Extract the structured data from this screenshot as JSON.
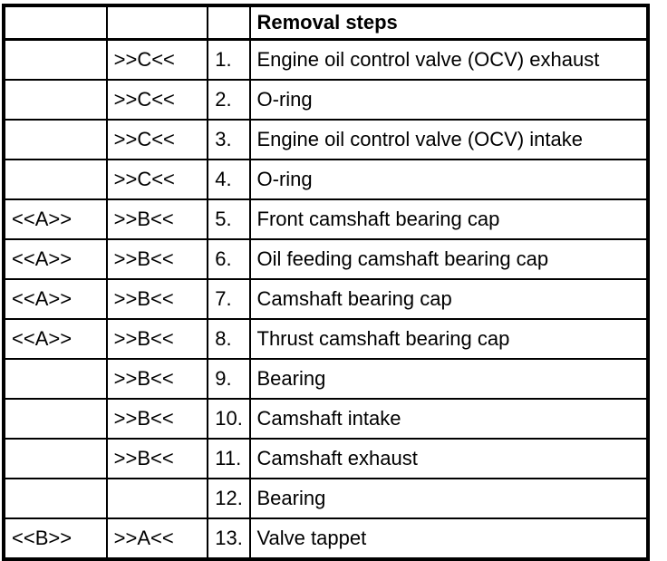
{
  "header": {
    "removal_steps": "Removal steps"
  },
  "rows": [
    {
      "a": "",
      "b": ">>C<<",
      "n": "1.",
      "step": "Engine oil control valve (OCV) exhaust"
    },
    {
      "a": "",
      "b": ">>C<<",
      "n": "2.",
      "step": "O-ring"
    },
    {
      "a": "",
      "b": ">>C<<",
      "n": "3.",
      "step": "Engine oil control valve (OCV) intake"
    },
    {
      "a": "",
      "b": ">>C<<",
      "n": "4.",
      "step": "O-ring"
    },
    {
      "a": "<<A>>",
      "b": ">>B<<",
      "n": "5.",
      "step": "Front camshaft bearing cap"
    },
    {
      "a": "<<A>>",
      "b": ">>B<<",
      "n": "6.",
      "step": "Oil feeding camshaft bearing cap"
    },
    {
      "a": "<<A>>",
      "b": ">>B<<",
      "n": "7.",
      "step": "Camshaft bearing cap"
    },
    {
      "a": "<<A>>",
      "b": ">>B<<",
      "n": "8.",
      "step": "Thrust camshaft bearing cap"
    },
    {
      "a": "",
      "b": ">>B<<",
      "n": "9.",
      "step": "Bearing"
    },
    {
      "a": "",
      "b": ">>B<<",
      "n": "10.",
      "step": "Camshaft intake"
    },
    {
      "a": "",
      "b": ">>B<<",
      "n": "11.",
      "step": "Camshaft exhaust"
    },
    {
      "a": "",
      "b": "",
      "n": "12.",
      "step": "Bearing"
    },
    {
      "a": "<<B>>",
      "b": ">>A<<",
      "n": "13.",
      "step": "Valve tappet"
    }
  ],
  "colors": {
    "border": "#000000",
    "background": "#ffffff",
    "text": "#000000"
  }
}
